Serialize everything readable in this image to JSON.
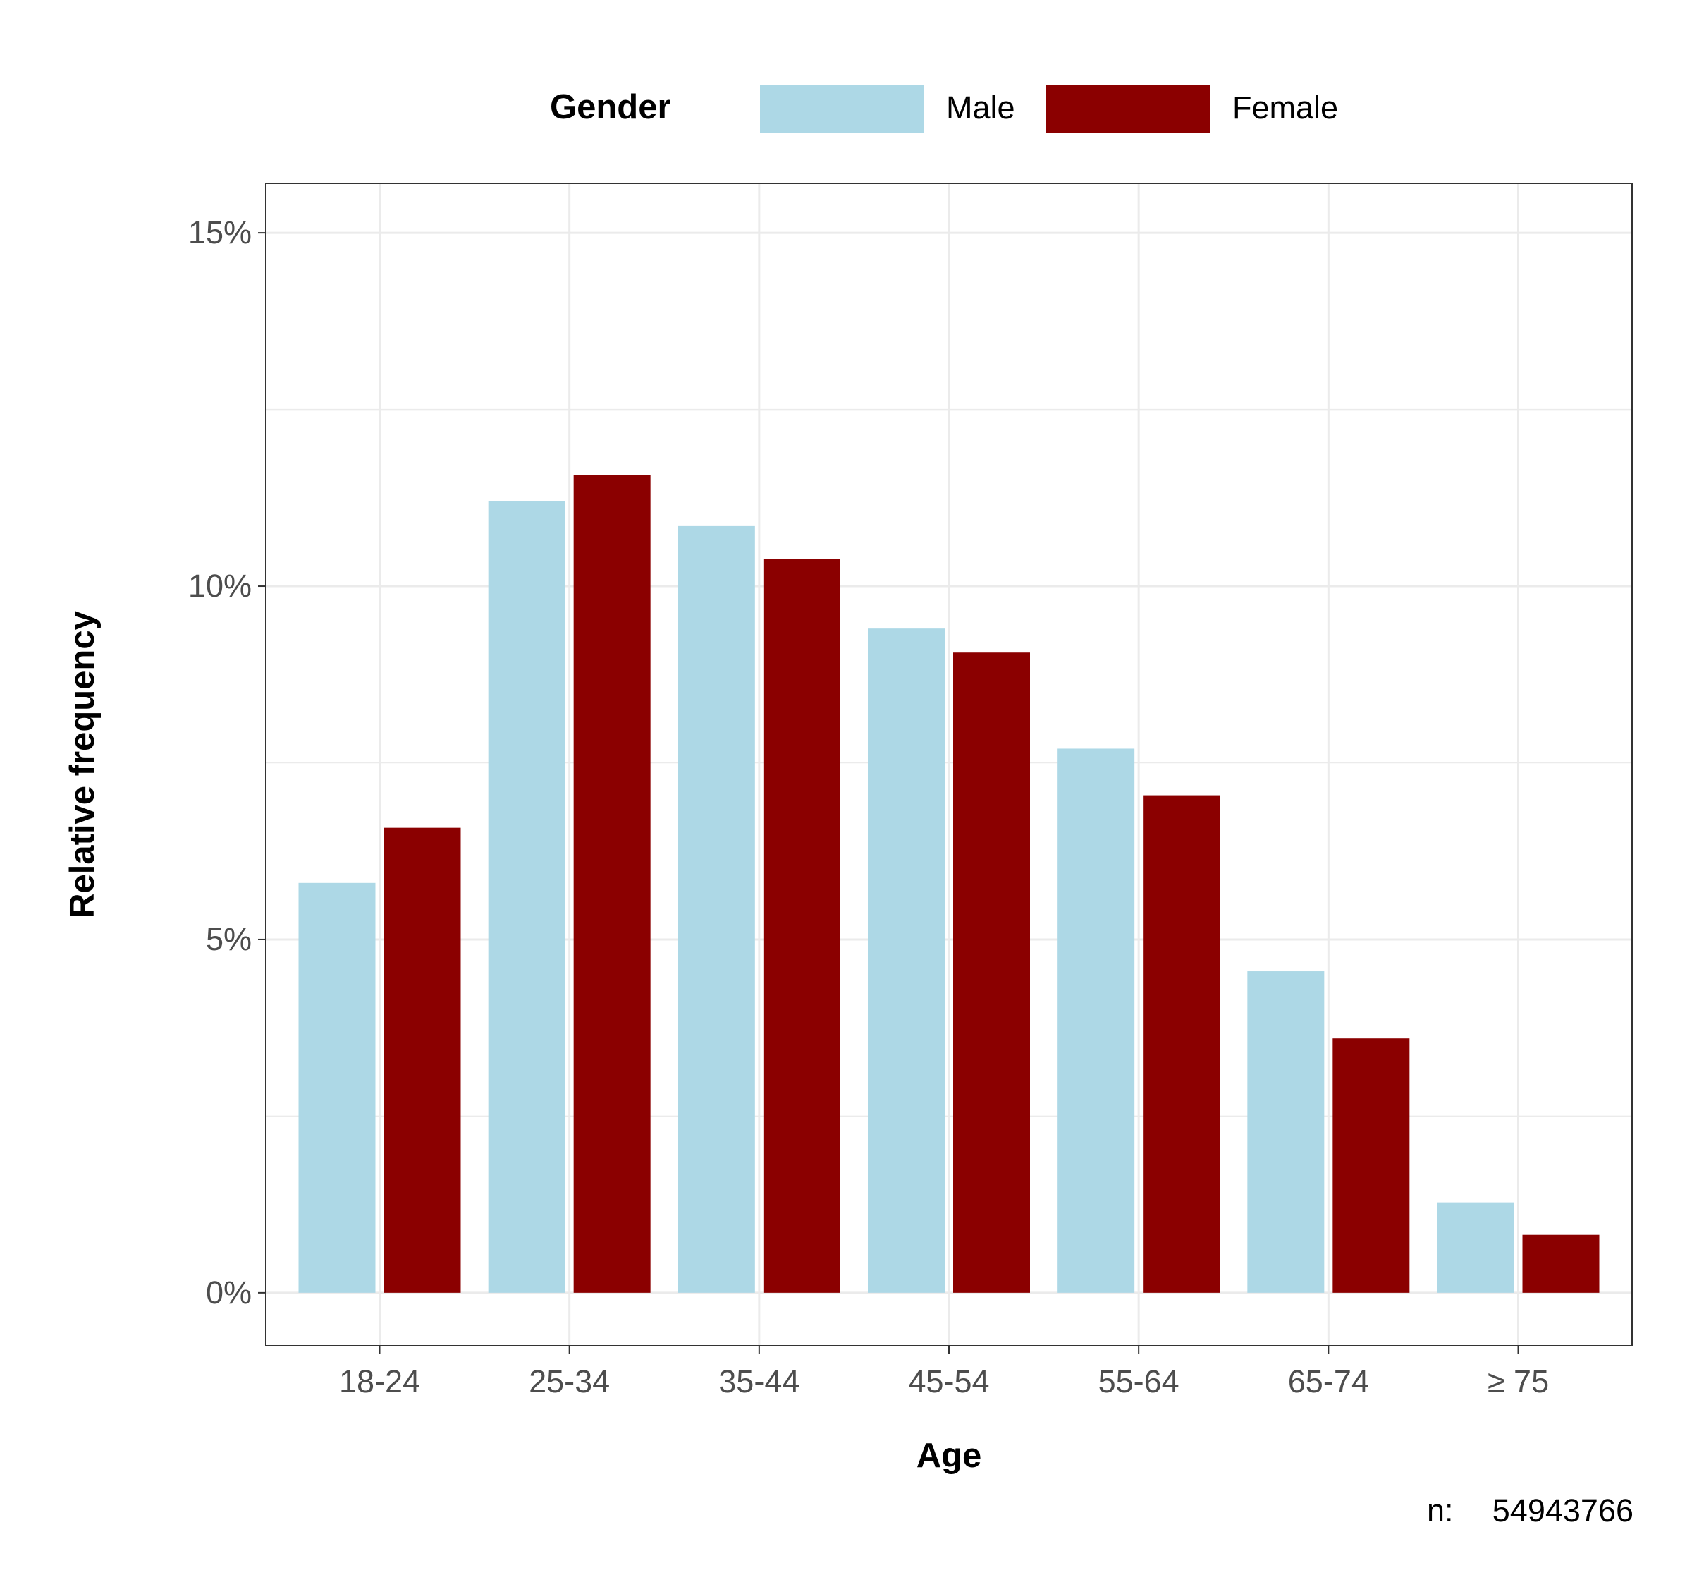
{
  "legend": {
    "title": "Gender"
  },
  "axes": {
    "x_title": "Age",
    "y_title": "Relative frequency"
  },
  "note": {
    "label": "n:",
    "value": "54943766"
  },
  "colors": {
    "male": "#add8e6",
    "female": "#8b0000",
    "grid": "#ebebeb",
    "panel_border": "#333333",
    "tick_text": "#4d4d4d"
  },
  "chart_data": {
    "type": "bar",
    "title": "",
    "xlabel": "Age",
    "ylabel": "Relative frequency",
    "categories": [
      "18-24",
      "25-34",
      "35-44",
      "45-54",
      "55-64",
      "65-74",
      "≥ 75"
    ],
    "series": [
      {
        "name": "Male",
        "values": [
          5.8,
          11.2,
          10.85,
          9.4,
          7.7,
          4.55,
          1.28
        ]
      },
      {
        "name": "Female",
        "values": [
          6.58,
          11.57,
          10.38,
          9.06,
          7.04,
          3.6,
          0.82
        ]
      }
    ],
    "ylim": [
      -0.75,
      15.7
    ],
    "yticks": [
      0,
      5,
      10,
      15
    ],
    "ytick_labels": [
      "0%",
      "5%",
      "10%",
      "15%"
    ],
    "grid": true,
    "legend_position": "top",
    "legend_entries": [
      "Male",
      "Female"
    ]
  }
}
